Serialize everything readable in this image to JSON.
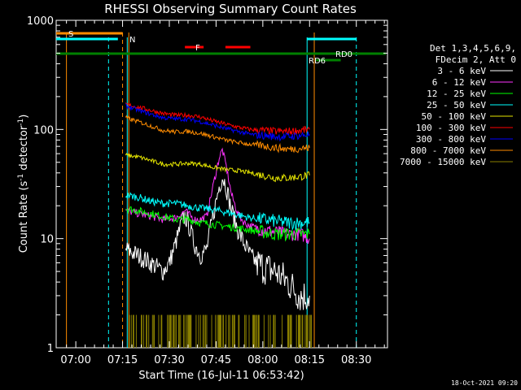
{
  "chart_data": {
    "type": "line",
    "title": "RHESSI Observing Summary Count Rates",
    "xlabel": "Start Time (16-Jul-11 06:53:42)",
    "ylabel_main": "Count Rate (s",
    "ylabel_sup1": "-1",
    "ylabel_mid": " detector",
    "ylabel_sup2": "-1",
    "ylabel_end": ")",
    "y_scale": "log",
    "ylim": [
      1,
      1000
    ],
    "xlim_min": [
      413.7,
      520
    ],
    "x_ticks": [
      {
        "t": 420,
        "label": "07:00"
      },
      {
        "t": 435,
        "label": "07:15"
      },
      {
        "t": 450,
        "label": "07:30"
      },
      {
        "t": 465,
        "label": "07:45"
      },
      {
        "t": 480,
        "label": "08:00"
      },
      {
        "t": 495,
        "label": "08:15"
      },
      {
        "t": 510,
        "label": "08:30"
      }
    ],
    "y_ticks": [
      {
        "v": 1,
        "label": "1"
      },
      {
        "v": 10,
        "label": "10"
      },
      {
        "v": 100,
        "label": "100"
      },
      {
        "v": 1000,
        "label": "1000"
      }
    ],
    "legend": {
      "header1": "Det 1,3,4,5,6,9,",
      "header2": "FDecim 2, Att 0",
      "entries": [
        {
          "label": "3 - 6 keV",
          "color": "#ffffff"
        },
        {
          "label": "6 - 12 keV",
          "color": "#ff33ff"
        },
        {
          "label": "12 - 25 keV",
          "color": "#00ff00"
        },
        {
          "label": "25 - 50 keV",
          "color": "#00ffff"
        },
        {
          "label": "50 - 100 keV",
          "color": "#e6e600"
        },
        {
          "label": "100 - 300 keV",
          "color": "#ff0000"
        },
        {
          "label": "300 - 800 keV",
          "color": "#0000ff"
        },
        {
          "label": "800 - 7000 keV",
          "color": "#ff8c00"
        },
        {
          "label": "7000 - 15000 keV",
          "color": "#8b8000"
        }
      ]
    },
    "series": [
      {
        "name": "3 - 6 keV",
        "color": "#ffffff",
        "points": [
          [
            436,
            8
          ],
          [
            440,
            7
          ],
          [
            444,
            6
          ],
          [
            448,
            5
          ],
          [
            450,
            6
          ],
          [
            452,
            9
          ],
          [
            454,
            14
          ],
          [
            455,
            16
          ],
          [
            456,
            14
          ],
          [
            458,
            9
          ],
          [
            460,
            7
          ],
          [
            462,
            8
          ],
          [
            464,
            16
          ],
          [
            466,
            30
          ],
          [
            467,
            37
          ],
          [
            468,
            32
          ],
          [
            470,
            18
          ],
          [
            472,
            12
          ],
          [
            474,
            9
          ],
          [
            476,
            7
          ],
          [
            478,
            6
          ],
          [
            480,
            5.5
          ],
          [
            484,
            5
          ],
          [
            488,
            4
          ],
          [
            492,
            3
          ],
          [
            495,
            3
          ]
        ]
      },
      {
        "name": "6 - 12 keV",
        "color": "#ff33ff",
        "points": [
          [
            436,
            18
          ],
          [
            440,
            17
          ],
          [
            444,
            16
          ],
          [
            448,
            15
          ],
          [
            452,
            15.5
          ],
          [
            454,
            17
          ],
          [
            455,
            18
          ],
          [
            456,
            17
          ],
          [
            458,
            15
          ],
          [
            460,
            15
          ],
          [
            462,
            16
          ],
          [
            464,
            30
          ],
          [
            466,
            55
          ],
          [
            467,
            65
          ],
          [
            468,
            50
          ],
          [
            470,
            25
          ],
          [
            472,
            17
          ],
          [
            474,
            14
          ],
          [
            476,
            13
          ],
          [
            480,
            12
          ],
          [
            484,
            11.5
          ],
          [
            488,
            11
          ],
          [
            492,
            11
          ],
          [
            495,
            10
          ]
        ]
      },
      {
        "name": "12 - 25 keV",
        "color": "#00ff00",
        "points": [
          [
            436,
            19
          ],
          [
            440,
            18
          ],
          [
            444,
            17
          ],
          [
            448,
            16
          ],
          [
            452,
            15
          ],
          [
            456,
            15
          ],
          [
            460,
            14
          ],
          [
            464,
            13.5
          ],
          [
            468,
            13
          ],
          [
            472,
            12.5
          ],
          [
            476,
            12
          ],
          [
            480,
            11.5
          ],
          [
            484,
            11
          ],
          [
            488,
            11
          ],
          [
            492,
            11
          ],
          [
            495,
            11
          ]
        ]
      },
      {
        "name": "25 - 50 keV",
        "color": "#00ffff",
        "points": [
          [
            436,
            25
          ],
          [
            440,
            24
          ],
          [
            444,
            22
          ],
          [
            448,
            21
          ],
          [
            452,
            21
          ],
          [
            456,
            20
          ],
          [
            460,
            19
          ],
          [
            464,
            18.5
          ],
          [
            468,
            17.5
          ],
          [
            472,
            16.5
          ],
          [
            476,
            15.5
          ],
          [
            480,
            15
          ],
          [
            484,
            14.5
          ],
          [
            488,
            14
          ],
          [
            492,
            14
          ],
          [
            495,
            14
          ]
        ]
      },
      {
        "name": "50 - 100 keV",
        "color": "#e6e600",
        "points": [
          [
            436,
            58
          ],
          [
            440,
            56
          ],
          [
            444,
            52
          ],
          [
            448,
            48
          ],
          [
            452,
            48
          ],
          [
            456,
            49
          ],
          [
            460,
            48
          ],
          [
            464,
            45
          ],
          [
            468,
            43
          ],
          [
            472,
            42
          ],
          [
            476,
            40
          ],
          [
            480,
            38
          ],
          [
            484,
            36
          ],
          [
            488,
            36
          ],
          [
            492,
            37
          ],
          [
            495,
            38
          ]
        ]
      },
      {
        "name": "100 - 300 keV",
        "color": "#ff0000",
        "points": [
          [
            436,
            170
          ],
          [
            440,
            160
          ],
          [
            444,
            150
          ],
          [
            448,
            140
          ],
          [
            452,
            135
          ],
          [
            456,
            135
          ],
          [
            460,
            130
          ],
          [
            464,
            120
          ],
          [
            468,
            112
          ],
          [
            472,
            105
          ],
          [
            476,
            100
          ],
          [
            480,
            98
          ],
          [
            484,
            96
          ],
          [
            488,
            96
          ],
          [
            492,
            98
          ],
          [
            495,
            100
          ]
        ]
      },
      {
        "name": "300 - 800 keV",
        "color": "#0000ff",
        "points": [
          [
            436,
            165
          ],
          [
            440,
            150
          ],
          [
            444,
            138
          ],
          [
            448,
            128
          ],
          [
            452,
            125
          ],
          [
            456,
            124
          ],
          [
            460,
            118
          ],
          [
            464,
            110
          ],
          [
            468,
            102
          ],
          [
            472,
            96
          ],
          [
            476,
            90
          ],
          [
            480,
            88
          ],
          [
            484,
            86
          ],
          [
            488,
            86
          ],
          [
            492,
            88
          ],
          [
            495,
            90
          ]
        ]
      },
      {
        "name": "800 - 7000 keV",
        "color": "#ff8c00",
        "points": [
          [
            436,
            128
          ],
          [
            440,
            118
          ],
          [
            444,
            108
          ],
          [
            448,
            98
          ],
          [
            452,
            95
          ],
          [
            456,
            96
          ],
          [
            460,
            92
          ],
          [
            464,
            86
          ],
          [
            468,
            80
          ],
          [
            472,
            76
          ],
          [
            476,
            73
          ],
          [
            480,
            71
          ],
          [
            484,
            68
          ],
          [
            488,
            66
          ],
          [
            492,
            67
          ],
          [
            495,
            68
          ]
        ]
      }
    ],
    "flags": [
      {
        "name": "S",
        "color": "#ff8c00",
        "t_start": 413.7,
        "t_end": 435,
        "level": "S"
      },
      {
        "name": "N",
        "color": "#00ffff",
        "t_start": 413.7,
        "t_end": 433.5,
        "level": "N"
      },
      {
        "name": "F",
        "color": "#ff0000",
        "segments": [
          [
            455,
            461
          ],
          [
            468,
            476
          ]
        ]
      },
      {
        "name": "RD0",
        "color": "#008000",
        "segments": [
          [
            413.7,
            519.5
          ]
        ]
      },
      {
        "name": "RD6",
        "color": "#008000",
        "segments": [
          [
            497,
            505
          ]
        ]
      },
      {
        "name": "N",
        "color": "#00ffff",
        "segments": [
          [
            494.2,
            510
          ]
        ]
      }
    ],
    "markers": {
      "orange_solid_lines": [
        417,
        437,
        496.5
      ],
      "cyan_solid_lines": [
        436.5,
        494.2
      ],
      "cyan_dashed_lines": [
        430.5,
        510
      ],
      "orange_dashed_lines": [
        435
      ]
    }
  },
  "footer": {
    "date": "18-Oct-2021 09:20"
  }
}
